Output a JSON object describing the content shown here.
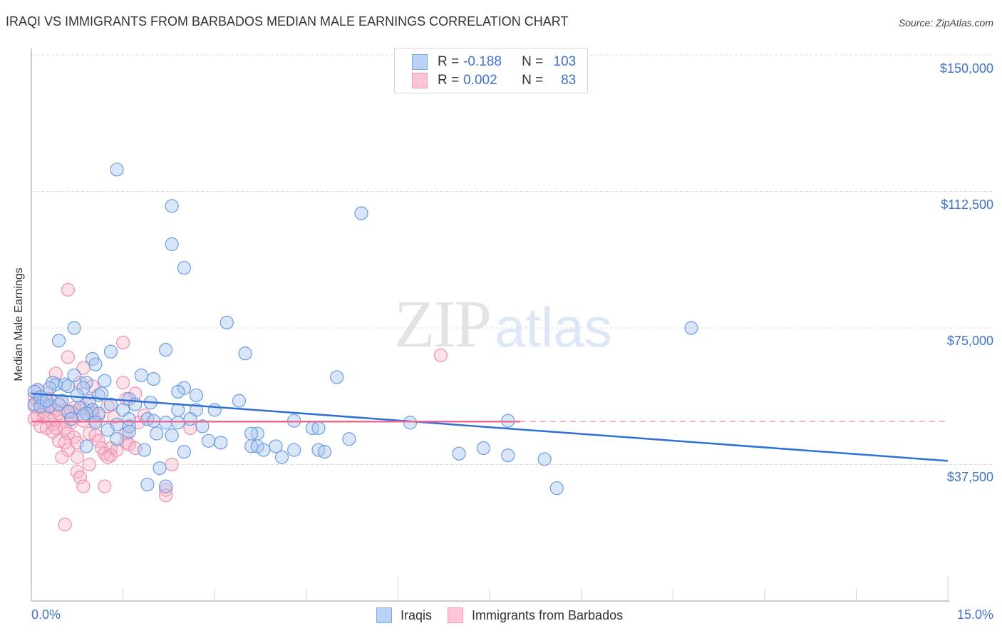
{
  "header": {
    "title": "IRAQI VS IMMIGRANTS FROM BARBADOS MEDIAN MALE EARNINGS CORRELATION CHART",
    "source": "Source: ZipAtlas.com"
  },
  "legend_stats": {
    "series1": {
      "r_label": "R =",
      "r_value": "-0.188",
      "n_label": "N =",
      "n_value": "103",
      "color": "#7aa6e6"
    },
    "series2": {
      "r_label": "R =",
      "r_value": "0.002",
      "n_label": "N =",
      "n_value": "83",
      "color": "#f29ab6"
    }
  },
  "axes": {
    "ylabel": "Median Male Earnings",
    "yticks": [
      "$150,000",
      "$112,500",
      "$75,000",
      "$37,500"
    ],
    "xticks": [
      "0.0%",
      "15.0%"
    ]
  },
  "bottom_legend": {
    "items": [
      {
        "label": "Iraqis",
        "color": "#7aa6e6"
      },
      {
        "label": "Immigrants from Barbados",
        "color": "#f29ab6"
      }
    ]
  },
  "watermark": {
    "zip": "ZIP",
    "atlas": "atlas"
  },
  "chart_data": {
    "type": "scatter",
    "title": "IRAQI VS IMMIGRANTS FROM BARBADOS MEDIAN MALE EARNINGS CORRELATION CHART",
    "xlabel": "",
    "ylabel": "Median Male Earnings",
    "xlim": [
      0,
      15
    ],
    "ylim": [
      0,
      150000
    ],
    "x_unit": "%",
    "yticks": [
      37500,
      75000,
      112500,
      150000
    ],
    "xticks_labeled": [
      0,
      15
    ],
    "grid": true,
    "legend_position": "top-center",
    "series": [
      {
        "name": "Iraqis",
        "color": "#7aa6e6",
        "r": -0.188,
        "n": 103,
        "trend": {
          "x": [
            0,
            15
          ],
          "y": [
            57000,
            38500
          ]
        },
        "points": [
          [
            1.4,
            118500
          ],
          [
            2.3,
            108500
          ],
          [
            2.3,
            98000
          ],
          [
            2.5,
            91500
          ],
          [
            5.4,
            106500
          ],
          [
            10.8,
            75000
          ],
          [
            0.7,
            75000
          ],
          [
            3.2,
            76500
          ],
          [
            0.45,
            71500
          ],
          [
            2.2,
            69000
          ],
          [
            1.3,
            68500
          ],
          [
            3.5,
            68000
          ],
          [
            1.0,
            66500
          ],
          [
            1.05,
            65000
          ],
          [
            5.0,
            61500
          ],
          [
            0.7,
            62000
          ],
          [
            1.8,
            62000
          ],
          [
            2.0,
            61000
          ],
          [
            1.2,
            60500
          ],
          [
            0.9,
            60000
          ],
          [
            0.4,
            59500
          ],
          [
            0.35,
            60000
          ],
          [
            0.55,
            59500
          ],
          [
            0.6,
            59000
          ],
          [
            0.3,
            58500
          ],
          [
            0.1,
            58000
          ],
          [
            0.05,
            57500
          ],
          [
            0.85,
            58500
          ],
          [
            2.5,
            58500
          ],
          [
            2.4,
            57500
          ],
          [
            2.7,
            56500
          ],
          [
            1.1,
            56500
          ],
          [
            1.6,
            55500
          ],
          [
            0.5,
            55000
          ],
          [
            0.95,
            55000
          ],
          [
            3.4,
            55000
          ],
          [
            0.2,
            54500
          ],
          [
            0.05,
            54000
          ],
          [
            0.15,
            53500
          ],
          [
            0.3,
            53500
          ],
          [
            1.3,
            54000
          ],
          [
            1.7,
            54000
          ],
          [
            1.95,
            54500
          ],
          [
            0.8,
            53000
          ],
          [
            1.0,
            52500
          ],
          [
            1.5,
            52500
          ],
          [
            2.4,
            52500
          ],
          [
            2.7,
            52500
          ],
          [
            3.0,
            52500
          ],
          [
            0.6,
            52000
          ],
          [
            0.9,
            51500
          ],
          [
            1.1,
            51500
          ],
          [
            0.85,
            51000
          ],
          [
            1.6,
            50000
          ],
          [
            1.9,
            50000
          ],
          [
            2.0,
            49500
          ],
          [
            2.6,
            50000
          ],
          [
            2.2,
            49000
          ],
          [
            2.4,
            49000
          ],
          [
            4.3,
            49500
          ],
          [
            6.2,
            49000
          ],
          [
            7.8,
            49500
          ],
          [
            1.4,
            48500
          ],
          [
            1.6,
            48000
          ],
          [
            2.8,
            48000
          ],
          [
            4.6,
            47500
          ],
          [
            4.7,
            47500
          ],
          [
            1.6,
            46500
          ],
          [
            1.25,
            47000
          ],
          [
            2.05,
            46000
          ],
          [
            2.3,
            45500
          ],
          [
            3.7,
            46000
          ],
          [
            3.6,
            46000
          ],
          [
            1.4,
            44500
          ],
          [
            2.9,
            44000
          ],
          [
            3.1,
            43500
          ],
          [
            5.2,
            44500
          ],
          [
            3.6,
            42500
          ],
          [
            3.7,
            42500
          ],
          [
            4.0,
            42500
          ],
          [
            0.9,
            42500
          ],
          [
            1.85,
            41500
          ],
          [
            2.5,
            41000
          ],
          [
            3.8,
            41500
          ],
          [
            4.3,
            41500
          ],
          [
            4.7,
            41500
          ],
          [
            4.8,
            41000
          ],
          [
            4.1,
            39500
          ],
          [
            7.0,
            40500
          ],
          [
            7.4,
            42000
          ],
          [
            7.8,
            40000
          ],
          [
            8.4,
            39000
          ],
          [
            2.1,
            36500
          ],
          [
            1.9,
            32000
          ],
          [
            2.2,
            31500
          ],
          [
            8.6,
            31000
          ],
          [
            0.15,
            56000
          ],
          [
            0.25,
            55000
          ],
          [
            0.45,
            54000
          ],
          [
            0.75,
            56500
          ],
          [
            1.15,
            57000
          ],
          [
            0.65,
            50000
          ],
          [
            1.05,
            49000
          ]
        ]
      },
      {
        "name": "Immigrants from Barbados",
        "color": "#f29ab6",
        "r": 0.002,
        "n": 83,
        "trend": {
          "x": [
            0,
            8
          ],
          "y": [
            49300,
            49300
          ],
          "extended_dashed_to": 15
        },
        "points": [
          [
            0.6,
            85500
          ],
          [
            1.5,
            71000
          ],
          [
            6.7,
            67500
          ],
          [
            0.6,
            67000
          ],
          [
            0.4,
            62500
          ],
          [
            0.85,
            64000
          ],
          [
            1.5,
            60000
          ],
          [
            1.7,
            57000
          ],
          [
            0.8,
            60000
          ],
          [
            1.0,
            59000
          ],
          [
            0.1,
            58000
          ],
          [
            0.25,
            57000
          ],
          [
            0.05,
            56000
          ],
          [
            0.1,
            55000
          ],
          [
            0.2,
            54500
          ],
          [
            0.3,
            54000
          ],
          [
            0.05,
            53500
          ],
          [
            0.15,
            53000
          ],
          [
            0.35,
            53000
          ],
          [
            0.4,
            52500
          ],
          [
            0.55,
            52500
          ],
          [
            0.7,
            53000
          ],
          [
            0.85,
            53000
          ],
          [
            1.0,
            52500
          ],
          [
            1.25,
            53500
          ],
          [
            1.55,
            55500
          ],
          [
            1.0,
            51500
          ],
          [
            0.75,
            51000
          ],
          [
            0.1,
            51000
          ],
          [
            0.2,
            50500
          ],
          [
            0.05,
            50000
          ],
          [
            0.3,
            50000
          ],
          [
            0.5,
            49500
          ],
          [
            0.65,
            49000
          ],
          [
            0.85,
            49500
          ],
          [
            1.05,
            49500
          ],
          [
            0.35,
            48500
          ],
          [
            0.15,
            48000
          ],
          [
            0.25,
            47500
          ],
          [
            0.4,
            47500
          ],
          [
            0.55,
            47500
          ],
          [
            1.75,
            49000
          ],
          [
            2.6,
            47500
          ],
          [
            0.6,
            46000
          ],
          [
            0.7,
            45000
          ],
          [
            0.95,
            46000
          ],
          [
            1.05,
            45500
          ],
          [
            1.55,
            46000
          ],
          [
            0.45,
            44000
          ],
          [
            0.55,
            43500
          ],
          [
            0.75,
            43500
          ],
          [
            1.1,
            44000
          ],
          [
            1.55,
            43500
          ],
          [
            1.6,
            43000
          ],
          [
            0.6,
            41500
          ],
          [
            1.15,
            42000
          ],
          [
            1.3,
            42000
          ],
          [
            1.4,
            41500
          ],
          [
            1.7,
            42000
          ],
          [
            1.2,
            40500
          ],
          [
            1.3,
            40000
          ],
          [
            0.5,
            39500
          ],
          [
            0.75,
            39500
          ],
          [
            1.25,
            39500
          ],
          [
            0.95,
            37500
          ],
          [
            2.3,
            37500
          ],
          [
            0.75,
            35500
          ],
          [
            0.8,
            34000
          ],
          [
            0.85,
            31500
          ],
          [
            1.2,
            31500
          ],
          [
            2.2,
            30500
          ],
          [
            2.2,
            29000
          ],
          [
            0.55,
            21000
          ],
          [
            0.2,
            52000
          ],
          [
            0.45,
            51500
          ],
          [
            0.65,
            52000
          ],
          [
            0.9,
            54000
          ],
          [
            1.1,
            51000
          ],
          [
            1.35,
            50500
          ],
          [
            0.3,
            55500
          ],
          [
            0.5,
            55000
          ],
          [
            0.35,
            46500
          ],
          [
            1.85,
            51000
          ]
        ]
      }
    ]
  }
}
